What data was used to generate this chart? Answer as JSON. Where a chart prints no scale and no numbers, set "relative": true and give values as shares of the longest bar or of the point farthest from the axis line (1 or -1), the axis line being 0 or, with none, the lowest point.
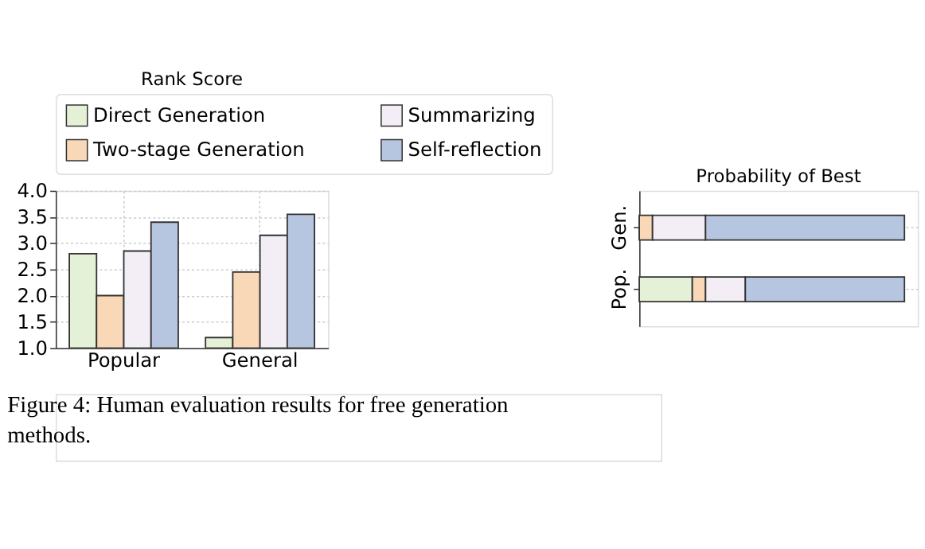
{
  "chart_data": [
    {
      "type": "bar",
      "title": "Rank Score",
      "categories": [
        "Popular",
        "General"
      ],
      "series": [
        {
          "name": "Direct Generation",
          "color": "#e5f1d7",
          "values": [
            2.8,
            1.2
          ]
        },
        {
          "name": "Two-stage Generation",
          "color": "#f8d8b6",
          "values": [
            2.0,
            2.45
          ]
        },
        {
          "name": "Summarizing",
          "color": "#f3eef6",
          "values": [
            2.85,
            3.15
          ]
        },
        {
          "name": "Self-reflection",
          "color": "#b7c6e0",
          "values": [
            3.4,
            3.55
          ]
        }
      ],
      "ylim": [
        1,
        4
      ],
      "yticks": [
        {
          "value": 1,
          "label": "1.0"
        },
        {
          "value": 1.5,
          "label": "1.5"
        },
        {
          "value": 2,
          "label": "2.0"
        },
        {
          "value": 2.5,
          "label": "2.5"
        },
        {
          "value": 3,
          "label": "3.0"
        },
        {
          "value": 3.5,
          "label": "3.5"
        },
        {
          "value": 4,
          "label": "4.0"
        }
      ],
      "grid": true,
      "legend": "top"
    },
    {
      "type": "bar",
      "title": "Probability of Best",
      "orientation": "horizontal",
      "stacked": true,
      "relative": true,
      "categories": [
        "Gen.",
        "Pop."
      ],
      "series": [
        {
          "color": "#e5f1d7",
          "values": [
            0,
            0.2
          ]
        },
        {
          "color": "#f8d8b6",
          "values": [
            0.05,
            0.05
          ]
        },
        {
          "color": "#f3eef6",
          "values": [
            0.2,
            0.15
          ]
        },
        {
          "color": "#b7c6e0",
          "values": [
            0.75,
            0.6
          ]
        }
      ],
      "grid": true,
      "annotations": [
        "Figure 4: Human evaluation results for free generation methods."
      ]
    }
  ]
}
